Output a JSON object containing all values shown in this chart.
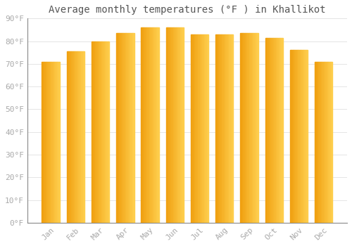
{
  "months": [
    "Jan",
    "Feb",
    "Mar",
    "Apr",
    "May",
    "Jun",
    "Jul",
    "Aug",
    "Sep",
    "Oct",
    "Nov",
    "Dec"
  ],
  "values": [
    71,
    75.5,
    80,
    83.5,
    86,
    86,
    83,
    83,
    83.5,
    81.5,
    76,
    71
  ],
  "bar_color_bottom": "#F5A623",
  "bar_color_top": "#F0C040",
  "bar_color_left": "#F5A623",
  "bar_color_right": "#FFD060",
  "title": "Average monthly temperatures (°F ) in Khallikot",
  "ylim": [
    0,
    90
  ],
  "yticks": [
    0,
    10,
    20,
    30,
    40,
    50,
    60,
    70,
    80,
    90
  ],
  "ytick_labels": [
    "0°F",
    "10°F",
    "20°F",
    "30°F",
    "40°F",
    "50°F",
    "60°F",
    "70°F",
    "80°F",
    "90°F"
  ],
  "background_color": "#ffffff",
  "grid_color": "#e0e0e0",
  "title_fontsize": 10,
  "tick_fontsize": 8,
  "bar_width": 0.72
}
